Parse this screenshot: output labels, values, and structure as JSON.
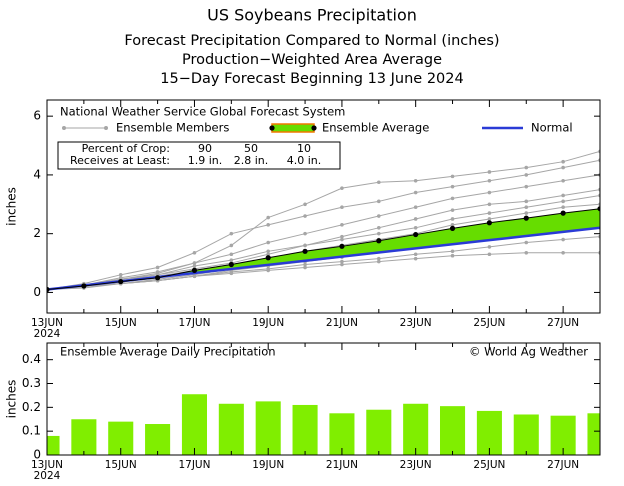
{
  "chart_data": [
    {
      "type": "line",
      "title": "US Soybeans Precipitation",
      "subtitles": [
        "Forecast Precipitation Compared to Normal (inches)",
        "Production−Weighted Area Average",
        "15−Day Forecast Beginning 13 June 2024"
      ],
      "legend_title": "National Weather Service Global Forecast System",
      "ylabel": "inches",
      "categories": [
        "13JUN",
        null,
        "15JUN",
        null,
        "17JUN",
        null,
        "19JUN",
        null,
        "21JUN",
        null,
        "23JUN",
        null,
        "25JUN",
        null,
        "27JUN",
        null
      ],
      "x_sublabel": "2024",
      "ylim": [
        -0.7,
        6.55
      ],
      "yticks": [
        0,
        2,
        4,
        6
      ],
      "ensemble_members": {
        "name": "Ensemble Members",
        "color": "#a6a6a6",
        "values": [
          [
            0.1,
            0.25,
            0.45,
            0.65,
            1.0,
            1.6,
            2.55,
            3.0,
            3.55,
            3.75,
            3.8,
            3.95,
            4.1,
            4.25,
            4.45,
            4.8
          ],
          [
            0.1,
            0.3,
            0.6,
            0.85,
            1.35,
            2.0,
            2.3,
            2.6,
            2.9,
            3.1,
            3.4,
            3.6,
            3.8,
            4.0,
            4.25,
            4.5
          ],
          [
            0.1,
            0.25,
            0.5,
            0.7,
            1.0,
            1.3,
            1.7,
            2.0,
            2.3,
            2.6,
            2.9,
            3.2,
            3.4,
            3.6,
            3.8,
            4.0
          ],
          [
            0.1,
            0.2,
            0.4,
            0.6,
            0.8,
            1.0,
            1.3,
            1.6,
            1.9,
            2.2,
            2.5,
            2.8,
            3.0,
            3.1,
            3.3,
            3.5
          ],
          [
            0.1,
            0.25,
            0.45,
            0.6,
            0.9,
            1.1,
            1.4,
            1.6,
            1.8,
            2.0,
            2.2,
            2.5,
            2.7,
            2.9,
            3.1,
            3.3
          ],
          [
            0.1,
            0.25,
            0.4,
            0.55,
            0.75,
            0.95,
            1.15,
            1.4,
            1.6,
            1.8,
            2.0,
            2.3,
            2.5,
            2.7,
            2.9,
            3.0
          ],
          [
            0.1,
            0.2,
            0.35,
            0.5,
            0.7,
            0.9,
            1.1,
            1.3,
            1.5,
            1.7,
            1.9,
            2.1,
            2.3,
            2.5,
            2.6,
            2.7
          ],
          [
            0.1,
            0.2,
            0.3,
            0.45,
            0.6,
            0.8,
            1.0,
            1.2,
            1.4,
            1.55,
            1.75,
            1.9,
            2.1,
            2.25,
            2.4,
            2.5
          ],
          [
            0.1,
            0.15,
            0.3,
            0.4,
            0.55,
            0.75,
            0.9,
            1.05,
            1.2,
            1.4,
            1.55,
            1.7,
            1.85,
            2.0,
            2.1,
            2.2
          ],
          [
            0.1,
            0.2,
            0.3,
            0.4,
            0.55,
            0.7,
            0.8,
            0.95,
            1.05,
            1.15,
            1.3,
            1.4,
            1.55,
            1.7,
            1.8,
            1.9
          ],
          [
            0.1,
            0.2,
            0.3,
            0.4,
            0.55,
            0.65,
            0.75,
            0.85,
            0.95,
            1.05,
            1.15,
            1.25,
            1.3,
            1.35,
            1.35,
            1.35
          ]
        ]
      },
      "series": [
        {
          "name": "Ensemble Average",
          "color": "#66dd00",
          "values": [
            0.1,
            0.22,
            0.37,
            0.5,
            0.75,
            0.95,
            1.18,
            1.4,
            1.57,
            1.76,
            1.97,
            2.18,
            2.37,
            2.53,
            2.7,
            2.85
          ]
        },
        {
          "name": "Normal",
          "color": "#2a3bd6",
          "values": [
            0.1,
            0.24,
            0.38,
            0.52,
            0.66,
            0.8,
            0.94,
            1.08,
            1.22,
            1.36,
            1.5,
            1.64,
            1.78,
            1.92,
            2.06,
            2.2
          ]
        }
      ],
      "percentile_table": {
        "rows": [
          [
            "Percent of Crop:",
            "90",
            "50",
            "10"
          ],
          [
            "Receives at Least:",
            "1.9 in.",
            "2.8 in.",
            "4.0 in."
          ]
        ]
      }
    },
    {
      "type": "bar",
      "title": "Ensemble Average Daily Precipitation",
      "credit": "© World Ag Weather",
      "ylabel": "inches",
      "categories": [
        "13JUN",
        null,
        "15JUN",
        null,
        "17JUN",
        null,
        "19JUN",
        null,
        "21JUN",
        null,
        "23JUN",
        null,
        "25JUN",
        null,
        "27JUN",
        null
      ],
      "x_sublabel": "2024",
      "values": [
        0.08,
        0.15,
        0.14,
        0.13,
        0.255,
        0.215,
        0.225,
        0.21,
        0.175,
        0.19,
        0.215,
        0.205,
        0.185,
        0.17,
        0.165,
        0.175
      ],
      "color": "#80ee00",
      "ylim": [
        0,
        0.47
      ],
      "yticks": [
        0,
        0.1,
        0.2,
        0.3,
        0.4
      ]
    }
  ]
}
